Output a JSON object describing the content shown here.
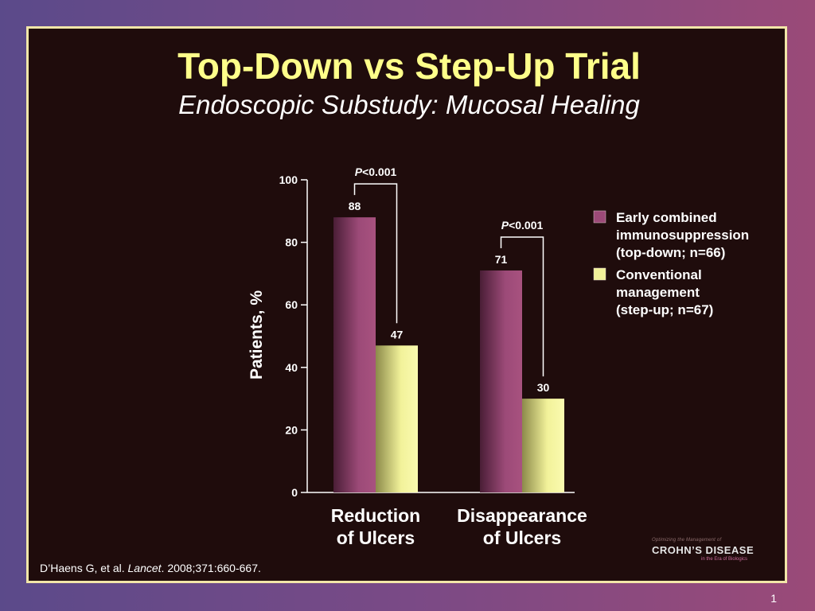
{
  "slide": {
    "title": "Top-Down vs Step-Up Trial",
    "subtitle": "Endoscopic Substudy: Mucosal Healing",
    "citation_authors": "D’Haens G, et al. ",
    "citation_journal": "Lancet",
    "citation_rest": ". 2008;371:660-667.",
    "logo_small": "Optimizing the Management of",
    "logo_main": "CROHN’S DISEASE",
    "logo_sub": "in the Era of Biologics",
    "page_number": "1"
  },
  "colors": {
    "slide_background": "#1f0c0c",
    "border": "#f2e6a8",
    "title": "#ffff8a",
    "series_topdown": "#9c4a78",
    "series_stepup": "#f2f29a"
  },
  "chart_data": {
    "type": "bar",
    "categories": [
      "Reduction\nof Ulcers",
      "Disappearance\nof Ulcers"
    ],
    "series": [
      {
        "name": "Early combined immunosuppression (top-down; n=66)",
        "values": [
          88,
          71
        ]
      },
      {
        "name": "Conventional management (step-up; n=67)",
        "values": [
          47,
          30
        ]
      }
    ],
    "ylabel": "Patients, %",
    "ylim": [
      0,
      100
    ],
    "yticks": [
      0,
      20,
      40,
      60,
      80,
      100
    ],
    "annotations": [
      "P<0.001",
      "P<0.001"
    ],
    "legend_position": "right",
    "grid": false
  }
}
